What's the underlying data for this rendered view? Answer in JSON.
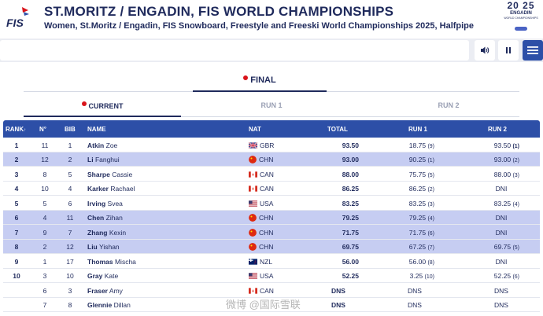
{
  "header": {
    "title": "ST.MORITZ / ENGADIN, FIS WORLD CHAMPIONSHIPS",
    "subtitle": "Women, St.Moritz / Engadin, FIS Snowboard, Freestyle and Freeski World Championships 2025, Halfpipe",
    "logo_year_top": "20 25",
    "logo_name": "ENGADIN",
    "logo_small": "WORLD CHAMPIONSHIPS",
    "fis_logo_text": "FIS"
  },
  "toolbar": {
    "sound_icon": "speaker-icon",
    "pause_icon": "pause-icon",
    "menu_icon": "hamburger-icon",
    "accent": "#2d4fa7"
  },
  "stage": {
    "label": "FINAL"
  },
  "run_tabs": {
    "current": "CURRENT",
    "run1": "RUN 1",
    "run2": "RUN 2"
  },
  "table": {
    "headers": {
      "rank": "RANK",
      "no": "N°",
      "bib": "BIB",
      "name": "NAME",
      "nat": "NAT",
      "total": "TOTAL",
      "run1": "RUN 1",
      "run2": "RUN 2"
    },
    "rows": [
      {
        "rank": "1",
        "no": "11",
        "bib": "1",
        "last": "Atkin",
        "first": "Zoe",
        "nat": "GBR",
        "flag": "gbr",
        "total": "93.50",
        "r1": "18.75",
        "r1rank": "(9)",
        "r2": "93.50",
        "r2rank": "(1)",
        "r2bold": true,
        "hl": false
      },
      {
        "rank": "2",
        "no": "12",
        "bib": "2",
        "last": "Li",
        "first": "Fanghui",
        "nat": "CHN",
        "flag": "chn",
        "total": "93.00",
        "r1": "90.25",
        "r1rank": "(1)",
        "r2": "93.00",
        "r2rank": "(2)",
        "r2bold": false,
        "hl": true
      },
      {
        "rank": "3",
        "no": "8",
        "bib": "5",
        "last": "Sharpe",
        "first": "Cassie",
        "nat": "CAN",
        "flag": "can",
        "total": "88.00",
        "r1": "75.75",
        "r1rank": "(5)",
        "r2": "88.00",
        "r2rank": "(3)",
        "r2bold": false,
        "hl": false
      },
      {
        "rank": "4",
        "no": "10",
        "bib": "4",
        "last": "Karker",
        "first": "Rachael",
        "nat": "CAN",
        "flag": "can",
        "total": "86.25",
        "r1": "86.25",
        "r1rank": "(2)",
        "r2": "DNI",
        "r2rank": "",
        "r2bold": false,
        "hl": false
      },
      {
        "rank": "5",
        "no": "5",
        "bib": "6",
        "last": "Irving",
        "first": "Svea",
        "nat": "USA",
        "flag": "usa",
        "total": "83.25",
        "r1": "83.25",
        "r1rank": "(3)",
        "r2": "83.25",
        "r2rank": "(4)",
        "r2bold": false,
        "hl": false
      },
      {
        "rank": "6",
        "no": "4",
        "bib": "11",
        "last": "Chen",
        "first": "Zihan",
        "nat": "CHN",
        "flag": "chn",
        "total": "79.25",
        "r1": "79.25",
        "r1rank": "(4)",
        "r2": "DNI",
        "r2rank": "",
        "r2bold": false,
        "hl": true
      },
      {
        "rank": "7",
        "no": "9",
        "bib": "7",
        "last": "Zhang",
        "first": "Kexin",
        "nat": "CHN",
        "flag": "chn",
        "total": "71.75",
        "r1": "71.75",
        "r1rank": "(6)",
        "r2": "DNI",
        "r2rank": "",
        "r2bold": false,
        "hl": true
      },
      {
        "rank": "8",
        "no": "2",
        "bib": "12",
        "last": "Liu",
        "first": "Yishan",
        "nat": "CHN",
        "flag": "chn",
        "total": "69.75",
        "r1": "67.25",
        "r1rank": "(7)",
        "r2": "69.75",
        "r2rank": "(5)",
        "r2bold": false,
        "hl": true
      },
      {
        "rank": "9",
        "no": "1",
        "bib": "17",
        "last": "Thomas",
        "first": "Mischa",
        "nat": "NZL",
        "flag": "nzl",
        "total": "56.00",
        "r1": "56.00",
        "r1rank": "(8)",
        "r2": "DNI",
        "r2rank": "",
        "r2bold": false,
        "hl": false
      },
      {
        "rank": "10",
        "no": "3",
        "bib": "10",
        "last": "Gray",
        "first": "Kate",
        "nat": "USA",
        "flag": "usa",
        "total": "52.25",
        "r1": "3.25",
        "r1rank": "(10)",
        "r2": "52.25",
        "r2rank": "(6)",
        "r2bold": false,
        "hl": false
      },
      {
        "rank": "",
        "no": "6",
        "bib": "3",
        "last": "Fraser",
        "first": "Amy",
        "nat": "CAN",
        "flag": "can",
        "total": "DNS",
        "r1": "DNS",
        "r1rank": "",
        "r2": "DNS",
        "r2rank": "",
        "r2bold": false,
        "hl": false
      },
      {
        "rank": "",
        "no": "7",
        "bib": "8",
        "last": "Glennie",
        "first": "Dillan",
        "nat": "",
        "flag": "",
        "total": "DNS",
        "r1": "DNS",
        "r1rank": "",
        "r2": "DNS",
        "r2rank": "",
        "r2bold": false,
        "hl": false
      }
    ]
  },
  "watermark": "微博 @国际雪联",
  "colors": {
    "navy": "#1f2a5c",
    "accent": "#2d4fa7",
    "highlight": "#c6cdf2",
    "live_dot": "#d9141b"
  }
}
